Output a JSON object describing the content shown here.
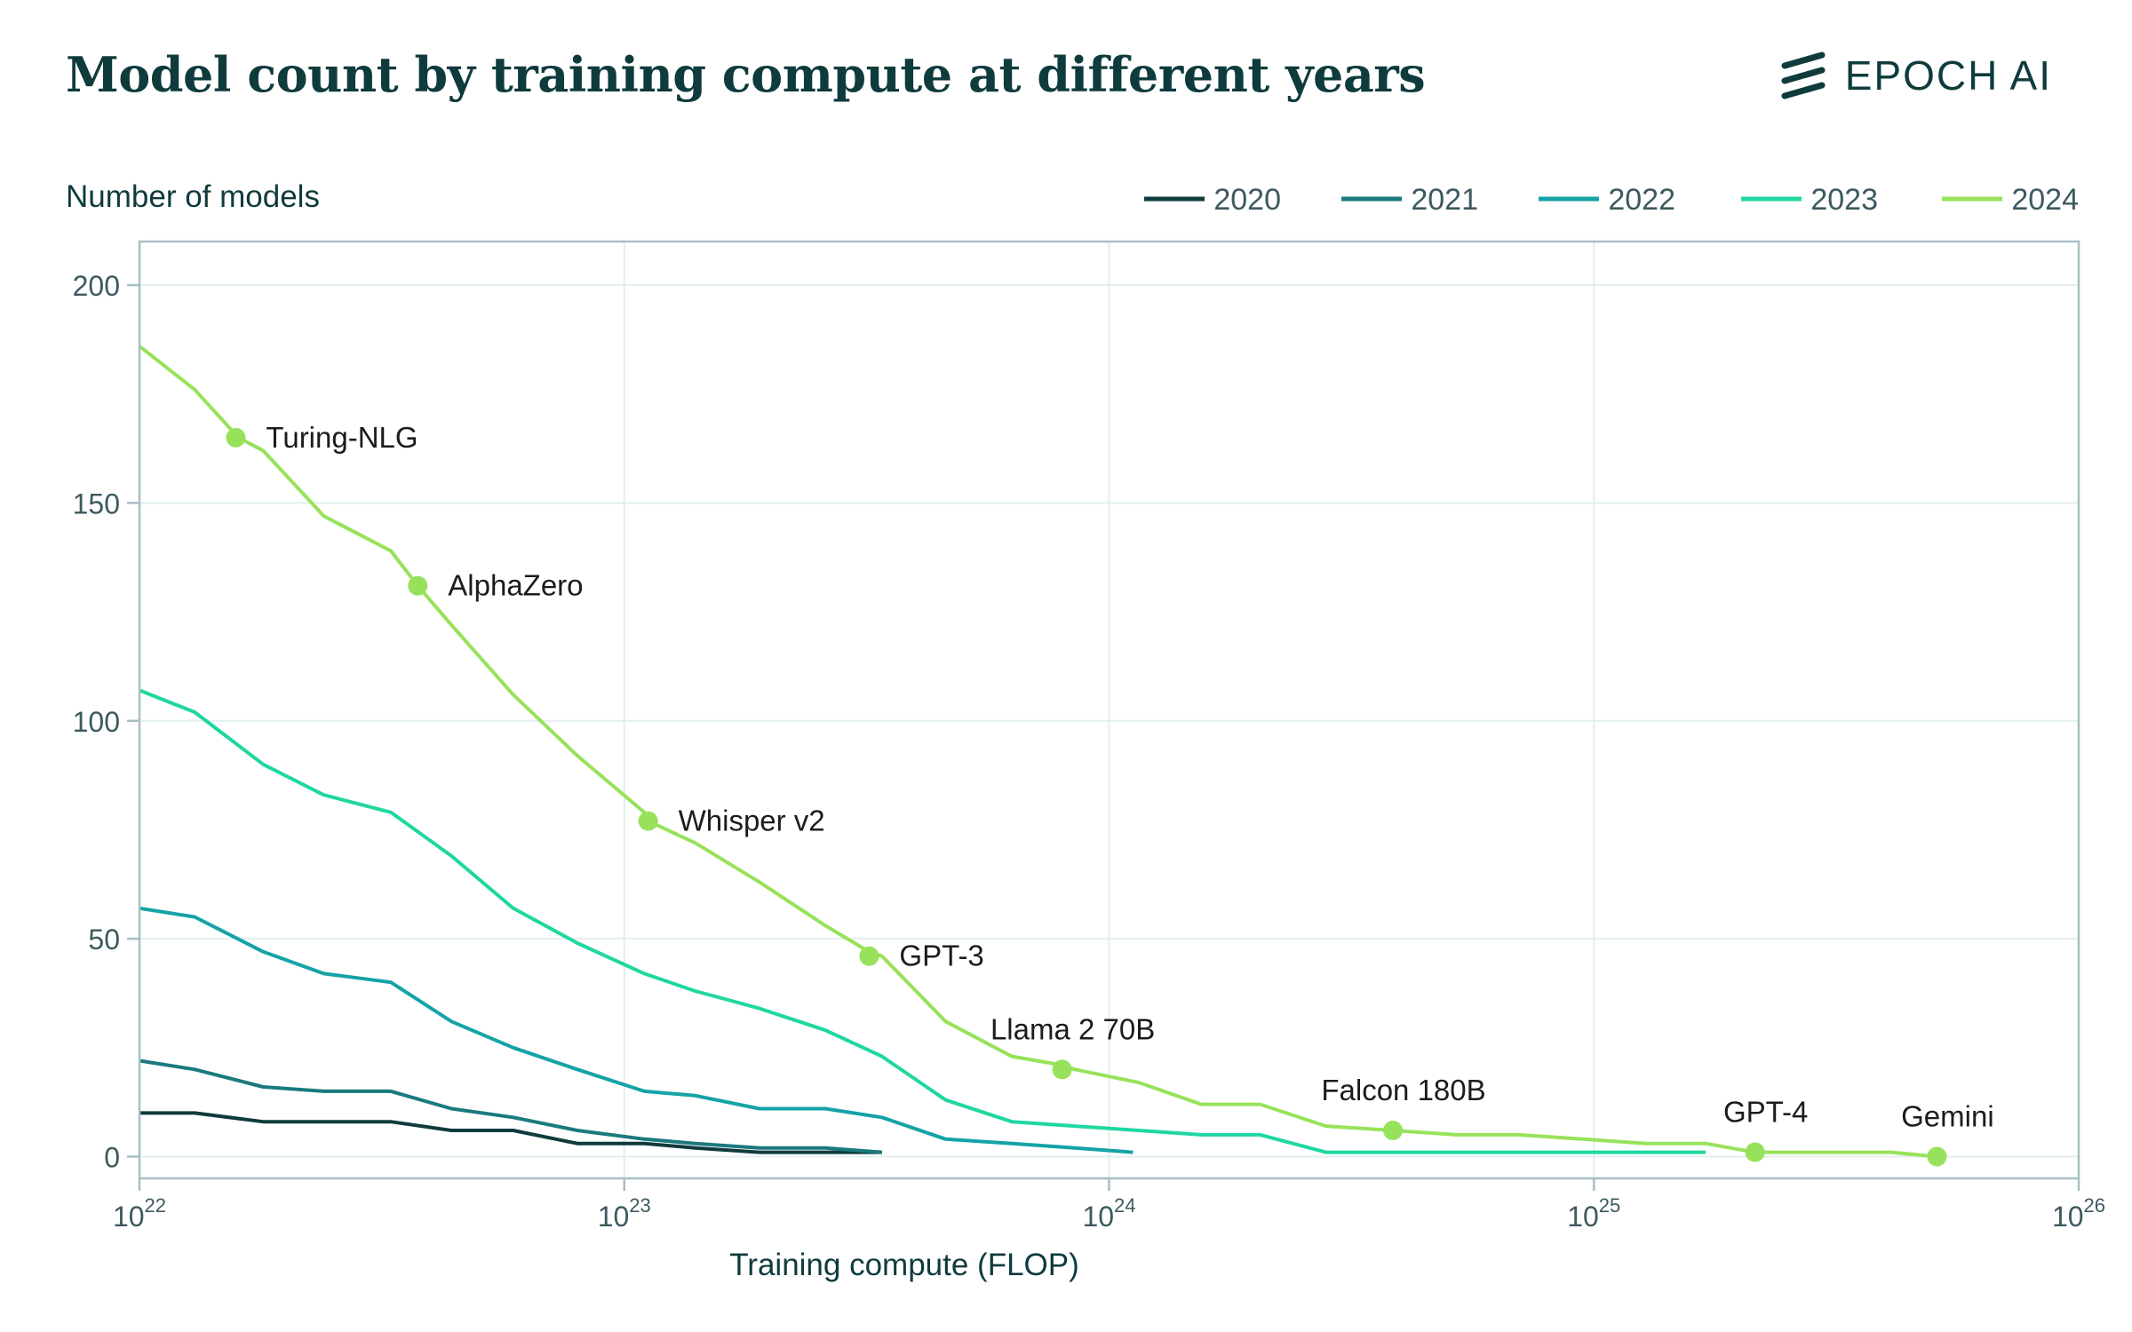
{
  "title": "Model count by training compute at different years",
  "brand": {
    "name": "EPOCH AI"
  },
  "colors": {
    "title": "#0f3b3d",
    "axis": "#a9bfc3",
    "grid": "#e3eeee",
    "text": "#3c5a5e"
  },
  "chart_data": {
    "type": "line",
    "ylabel": "Number of models",
    "xlabel": "Training compute (FLOP)",
    "xscale": "log",
    "xlim": [
      1e+22,
      1e+26
    ],
    "ylim": [
      -5,
      210
    ],
    "grid": true,
    "legend_position": "top-right",
    "x_ticks": [
      {
        "value": 1e+22,
        "base": "10",
        "exp": "22"
      },
      {
        "value": 1e+23,
        "base": "10",
        "exp": "23"
      },
      {
        "value": 1e+24,
        "base": "10",
        "exp": "24"
      },
      {
        "value": 1e+25,
        "base": "10",
        "exp": "25"
      },
      {
        "value": 1e+26,
        "base": "10",
        "exp": "26"
      }
    ],
    "y_ticks": [
      0,
      50,
      100,
      150,
      200
    ],
    "series": [
      {
        "name": "2020",
        "color": "#0f3b3d",
        "x": [
          1e+22,
          1.3e+22,
          1.8e+22,
          2.4e+22,
          3.3e+22,
          4.4e+22,
          5.9e+22,
          8e+22,
          1.1e+23,
          1.4e+23,
          1.9e+23,
          2.6e+23,
          3.4e+23
        ],
        "y": [
          10,
          10,
          8,
          8,
          8,
          6,
          6,
          3,
          3,
          2,
          1,
          1,
          1
        ]
      },
      {
        "name": "2021",
        "color": "#1a7a7e",
        "x": [
          1e+22,
          1.3e+22,
          1.8e+22,
          2.4e+22,
          3.3e+22,
          4.4e+22,
          5.9e+22,
          8e+22,
          1.1e+23,
          1.4e+23,
          1.9e+23,
          2.6e+23,
          3.4e+23
        ],
        "y": [
          22,
          20,
          16,
          15,
          15,
          11,
          9,
          6,
          4,
          3,
          2,
          2,
          1
        ]
      },
      {
        "name": "2022",
        "color": "#14a3a6",
        "x": [
          1e+22,
          1.3e+22,
          1.8e+22,
          2.4e+22,
          3.3e+22,
          4.4e+22,
          5.9e+22,
          8e+22,
          1.1e+23,
          1.4e+23,
          1.9e+23,
          2.6e+23,
          3.4e+23,
          4.6e+23,
          6.3e+23,
          8.5e+23,
          1.12e+24
        ],
        "y": [
          57,
          55,
          47,
          42,
          40,
          31,
          25,
          20,
          15,
          14,
          11,
          11,
          9,
          4,
          3,
          2,
          1
        ]
      },
      {
        "name": "2023",
        "color": "#1fd7a0",
        "x": [
          1e+22,
          1.3e+22,
          1.8e+22,
          2.4e+22,
          3.3e+22,
          4.4e+22,
          5.9e+22,
          8e+22,
          1.1e+23,
          1.4e+23,
          1.9e+23,
          2.6e+23,
          3.4e+23,
          4.6e+23,
          6.3e+23,
          8.5e+23,
          1.15e+24,
          1.55e+24,
          2.05e+24,
          2.8e+24,
          3.8e+24,
          5.2e+24,
          7e+24,
          9.5e+24,
          1.28e+25,
          1.7e+25
        ],
        "y": [
          107,
          102,
          90,
          83,
          79,
          69,
          57,
          49,
          42,
          38,
          34,
          29,
          23,
          13,
          8,
          7,
          6,
          5,
          5,
          1,
          1,
          1,
          1,
          1,
          1,
          1
        ]
      },
      {
        "name": "2024",
        "color": "#97e25a",
        "x": [
          1e+22,
          1.3e+22,
          1.6e+22,
          1.8e+22,
          2.4e+22,
          3.3e+22,
          3.75e+22,
          4.4e+22,
          5.9e+22,
          8e+22,
          1.1e+23,
          1.12e+23,
          1.4e+23,
          1.9e+23,
          2.6e+23,
          3.2e+23,
          3.4e+23,
          4.6e+23,
          6.3e+23,
          8e+23,
          8.5e+23,
          1.15e+24,
          1.55e+24,
          2.05e+24,
          2.8e+24,
          3.85e+24,
          5.2e+24,
          7e+24,
          9.5e+24,
          1.28e+25,
          1.7e+25,
          2.15e+25,
          2.9e+25,
          4.1e+25,
          5.1e+25
        ],
        "y": [
          186,
          176,
          165,
          162,
          147,
          139,
          131,
          122,
          106,
          92,
          79,
          77,
          72,
          63,
          53,
          47,
          46,
          31,
          23,
          21,
          20,
          17,
          12,
          12,
          7,
          6,
          5,
          5,
          4,
          3,
          3,
          1,
          1,
          1,
          0
        ],
        "annotations": [
          {
            "label": "Turing-NLG",
            "x": 1.58e+22,
            "y": 165,
            "pos": "right"
          },
          {
            "label": "AlphaZero",
            "x": 3.75e+22,
            "y": 131,
            "pos": "right"
          },
          {
            "label": "Whisper v2",
            "x": 1.12e+23,
            "y": 77,
            "pos": "right"
          },
          {
            "label": "GPT-3",
            "x": 3.2e+23,
            "y": 46,
            "pos": "right"
          },
          {
            "label": "Llama 2 70B",
            "x": 8e+23,
            "y": 20,
            "pos": "above"
          },
          {
            "label": "Falcon 180B",
            "x": 3.85e+24,
            "y": 6,
            "pos": "above"
          },
          {
            "label": "GPT-4",
            "x": 2.15e+25,
            "y": 1,
            "pos": "above"
          },
          {
            "label": "Gemini",
            "x": 5.1e+25,
            "y": 0,
            "pos": "above"
          }
        ]
      }
    ]
  }
}
